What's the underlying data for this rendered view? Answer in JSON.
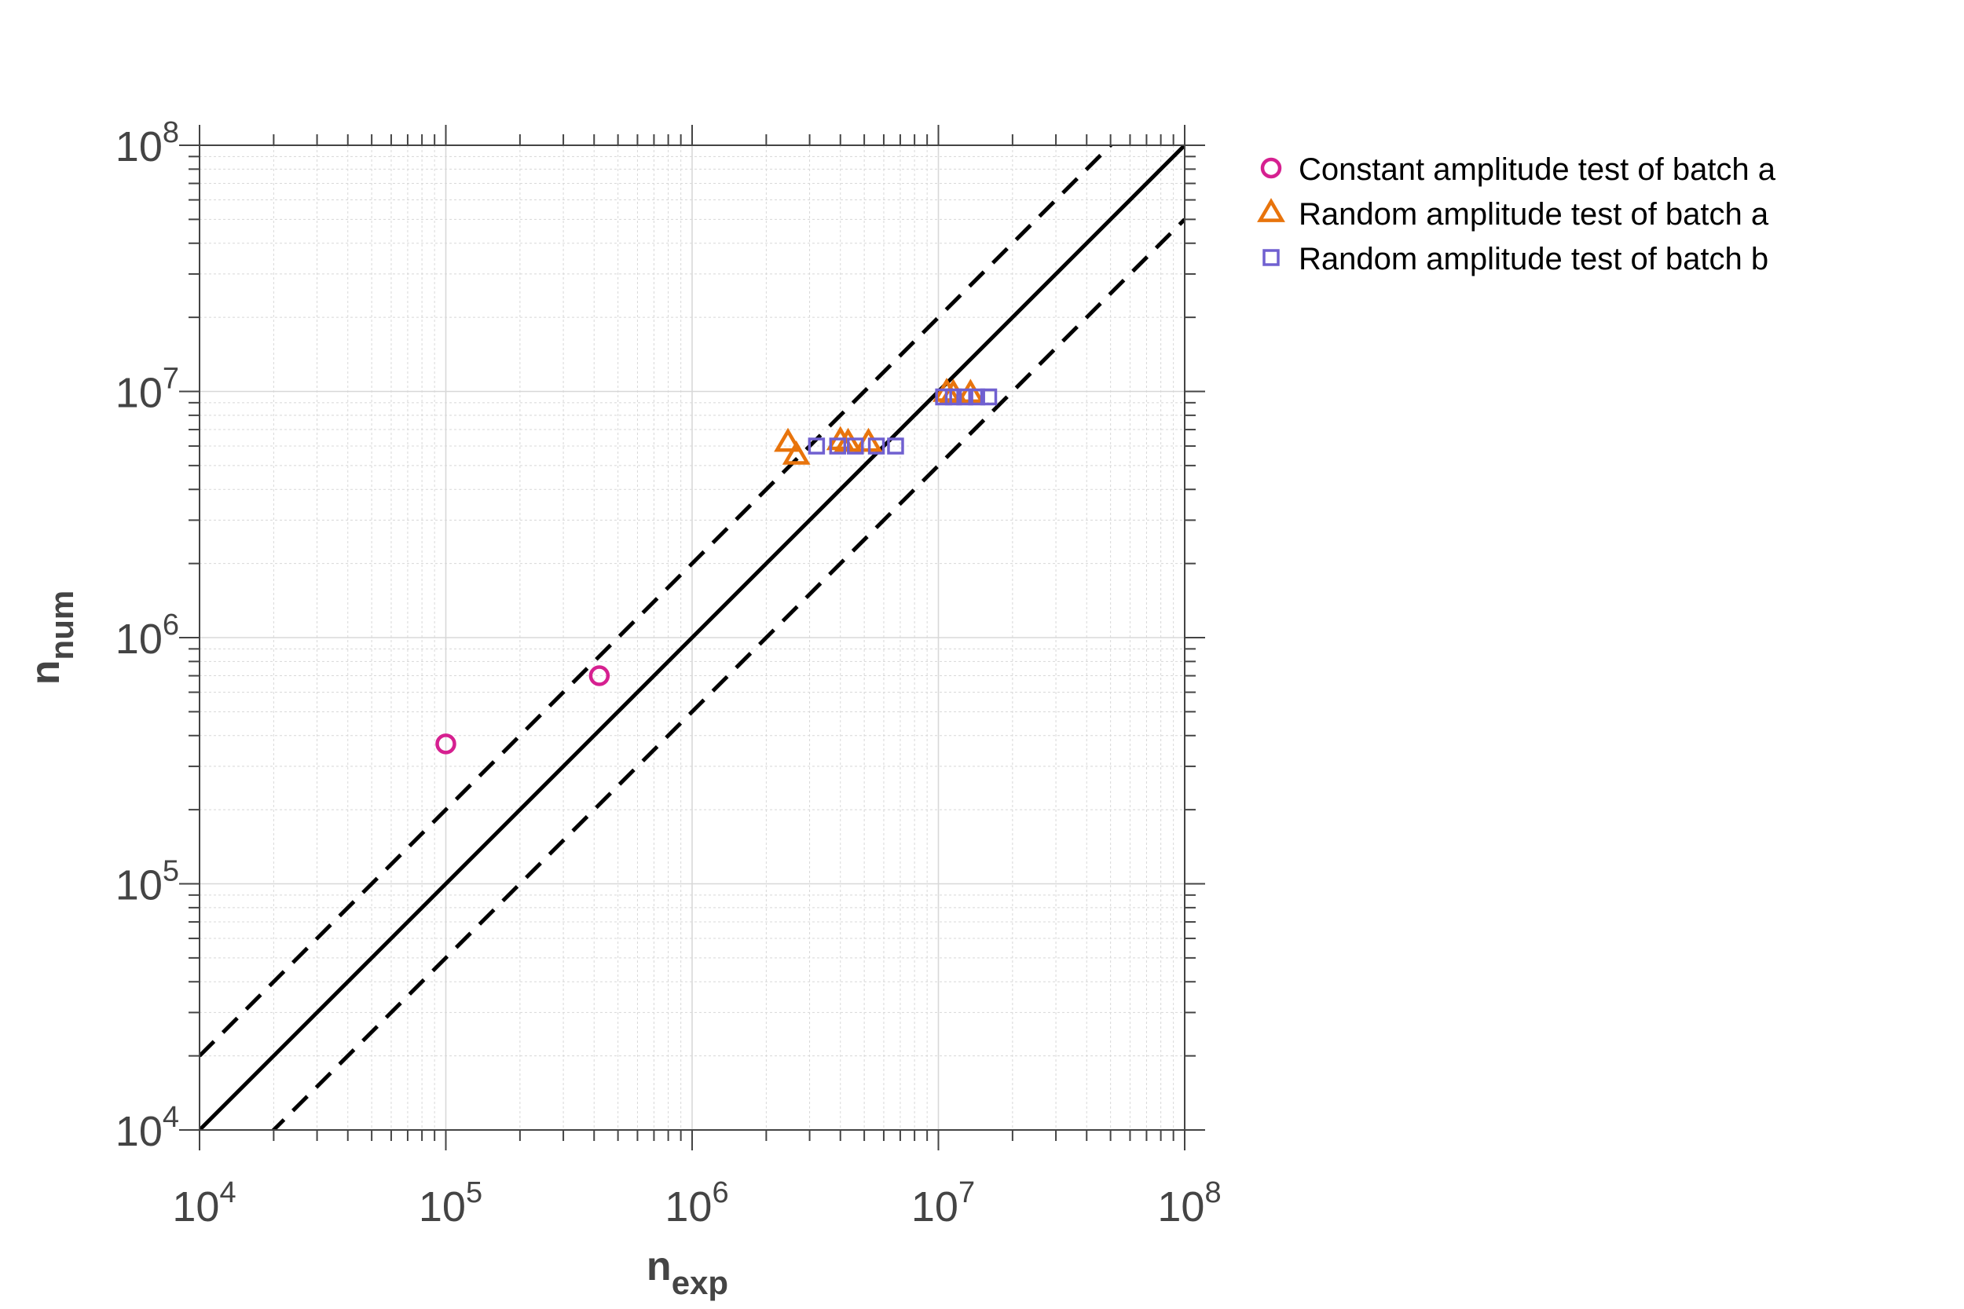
{
  "chart_data": {
    "type": "scatter",
    "title": "",
    "xlabel": {
      "base": "n",
      "sub": "exp"
    },
    "ylabel": {
      "base": "n",
      "sub": "num"
    },
    "xscale": "log",
    "yscale": "log",
    "xlim": [
      10000,
      100000000
    ],
    "ylim": [
      10000,
      100000000
    ],
    "grid": true,
    "legend_position": "outside-top-right",
    "ticks": [
      {
        "value": 10000,
        "base": "10",
        "exp": "4"
      },
      {
        "value": 100000,
        "base": "10",
        "exp": "5"
      },
      {
        "value": 1000000,
        "base": "10",
        "exp": "6"
      },
      {
        "value": 10000000,
        "base": "10",
        "exp": "7"
      },
      {
        "value": 100000000,
        "base": "10",
        "exp": "8"
      }
    ],
    "series": [
      {
        "name": "Constant amplitude test of batch a",
        "marker": "circle",
        "color": "#d62090",
        "points": [
          [
            100000,
            370000
          ],
          [
            420000,
            700000
          ]
        ]
      },
      {
        "name": "Random amplitude test of batch a",
        "marker": "triangle",
        "color": "#e8740c",
        "points": [
          [
            2450000,
            6200000
          ],
          [
            2650000,
            5500000
          ],
          [
            4000000,
            6300000
          ],
          [
            4300000,
            6200000
          ],
          [
            5200000,
            6200000
          ],
          [
            10800000,
            9900000
          ],
          [
            11500000,
            9800000
          ],
          [
            13500000,
            9800000
          ]
        ]
      },
      {
        "name": "Random amplitude test of batch b",
        "marker": "square",
        "color": "#7060d0",
        "points": [
          [
            3200000,
            6000000
          ],
          [
            3900000,
            6000000
          ],
          [
            4600000,
            6000000
          ],
          [
            5600000,
            6000000
          ],
          [
            6700000,
            6000000
          ],
          [
            10500000,
            9500000
          ],
          [
            11500000,
            9500000
          ],
          [
            12800000,
            9500000
          ],
          [
            14300000,
            9500000
          ],
          [
            16000000,
            9500000
          ]
        ]
      }
    ],
    "reference_lines": [
      {
        "style": "solid",
        "factor": 1
      },
      {
        "style": "dashed",
        "factor": 2
      },
      {
        "style": "dashed",
        "factor": 0.5
      }
    ],
    "colors": {
      "axis": "#444444",
      "grid": "#d8d8d8",
      "reference": "#000000"
    }
  }
}
